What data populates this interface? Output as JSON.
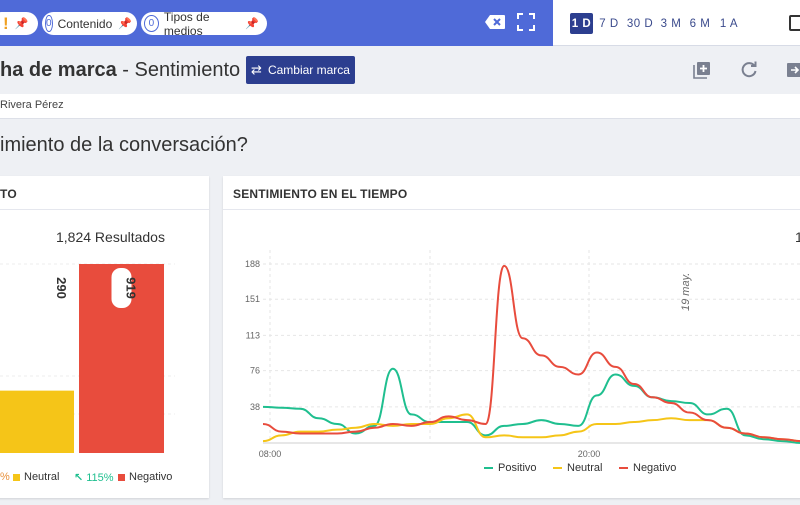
{
  "filters": {
    "warning_symbol": "!",
    "content": {
      "count": "0",
      "label": "Contenido"
    },
    "media": {
      "count": "0",
      "label": "Tipos de medios"
    }
  },
  "date_ranges": [
    {
      "label": "1 D",
      "active": true
    },
    {
      "label": "7 D",
      "active": false
    },
    {
      "label": "30 D",
      "active": false
    },
    {
      "label": "3 M",
      "active": false
    },
    {
      "label": "6 M",
      "active": false
    },
    {
      "label": "1 A",
      "active": false
    }
  ],
  "header": {
    "title_bold": "ha de marca",
    "title_rest": " - Sentimiento",
    "change_button": "Cambiar marca",
    "user": "Rivera Pérez"
  },
  "question": "imiento de la conversación?",
  "left_card": {
    "title": "TO",
    "results": "1,824 Resultados",
    "colors": {
      "neutral": "#f5c518",
      "negative": "#e84c3d"
    },
    "bars": [
      {
        "name": "Neutral",
        "value": 290,
        "label": "290",
        "fill": 0.33
      },
      {
        "name": "Negativo",
        "value": 919,
        "label": "919",
        "fill": 1.0
      }
    ],
    "legend": [
      {
        "text": "%",
        "color": ""
      },
      {
        "text": "Neutral",
        "color": "#f5c518"
      },
      {
        "text": "115%",
        "color": "#1fbf8f",
        "arrow": "↖"
      },
      {
        "text": "Negativo",
        "color": "#e84c3d"
      }
    ]
  },
  "right_card": {
    "title": "SENTIMIENTO EN EL TIEMPO",
    "results_partial": "1"
  },
  "chart_data": {
    "type": "line",
    "yticks": [
      38,
      76,
      113,
      151,
      188
    ],
    "ylim": [
      0,
      188
    ],
    "xticks": [
      "08:00",
      "20:00"
    ],
    "annotation": "19 may.",
    "series": [
      {
        "name": "Positivo",
        "color": "#1fbf8f",
        "values": [
          38,
          37,
          36,
          26,
          20,
          10,
          18,
          78,
          30,
          22,
          22,
          22,
          8,
          18,
          20,
          24,
          20,
          18,
          50,
          72,
          60,
          48,
          44,
          42,
          30,
          36,
          8,
          4,
          2,
          0
        ]
      },
      {
        "name": "Neutral",
        "color": "#f5c518",
        "values": [
          2,
          8,
          12,
          12,
          14,
          16,
          20,
          18,
          20,
          20,
          26,
          30,
          6,
          8,
          6,
          6,
          8,
          12,
          20,
          20,
          22,
          24,
          26,
          24,
          24,
          16,
          10,
          6,
          4,
          2
        ]
      },
      {
        "name": "Negativo",
        "color": "#e84c3d",
        "values": [
          20,
          12,
          10,
          10,
          10,
          12,
          16,
          20,
          18,
          22,
          28,
          24,
          20,
          186,
          110,
          92,
          80,
          72,
          95,
          80,
          62,
          48,
          42,
          32,
          24,
          16,
          10,
          6,
          4,
          2
        ]
      }
    ]
  }
}
